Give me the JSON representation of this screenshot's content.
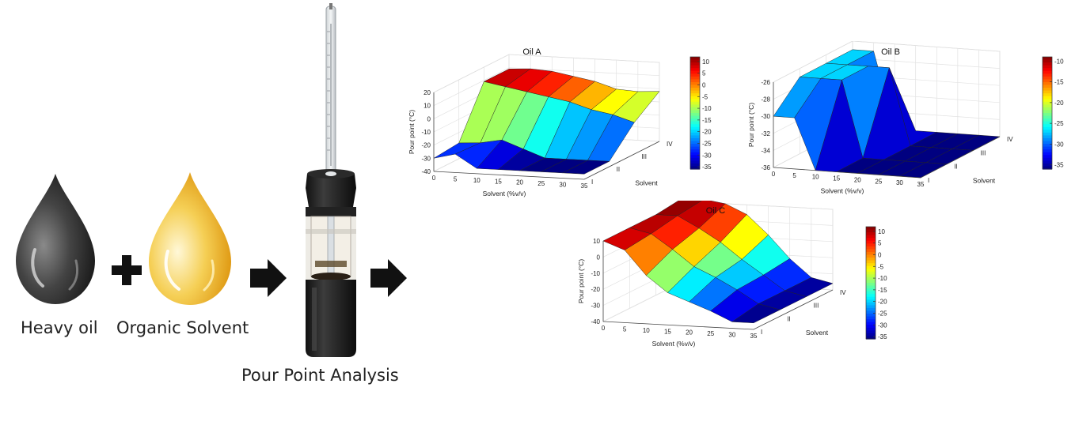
{
  "workflow": {
    "heavy_oil_label": "Heavy oil",
    "solvent_label": "Organic Solvent",
    "analysis_label": "Pour Point Analysis",
    "plus_icon": "plus-icon",
    "arrow_icon": "right-arrow-icon"
  },
  "chart_data": [
    {
      "type": "surface3d",
      "title": "Oil A",
      "xlabel": "Solvent (%v/v)",
      "ylabel": "Solvent",
      "zlabel": "Pour point (°C)",
      "x": [
        0,
        5,
        10,
        15,
        20,
        25,
        30,
        35
      ],
      "y": [
        "I",
        "II",
        "III",
        "IV"
      ],
      "zlim": [
        -40,
        20
      ],
      "zticks": [
        20,
        10,
        0,
        -10,
        -20,
        -30,
        -40
      ],
      "colorbar_ticks": [
        10,
        5,
        0,
        -5,
        -10,
        -15,
        -20,
        -25,
        -30,
        -35
      ],
      "clim": [
        -36,
        12
      ],
      "colormap": "jet",
      "series": [
        {
          "values": [
            -30,
            -26,
            -36,
            -36,
            -36,
            -36,
            -36,
            -36
          ]
        },
        {
          "values": [
            -28,
            -27,
            -24,
            -30,
            -36,
            -36,
            -36,
            -36
          ]
        },
        {
          "values": [
            9,
            6,
            3,
            0,
            -3,
            -8,
            -11,
            -16
          ]
        },
        {
          "values": [
            9,
            10,
            9,
            6,
            3,
            -2,
            -3,
            -2
          ]
        }
      ]
    },
    {
      "type": "surface3d",
      "title": "Oil B",
      "xlabel": "Solvent (%v/v)",
      "ylabel": "Solvent",
      "zlabel": "Pour point (°C)",
      "x": [
        0,
        5,
        10,
        15,
        20,
        25,
        30,
        35
      ],
      "y": [
        "I",
        "II",
        "III",
        "IV"
      ],
      "zlim": [
        -36,
        -26
      ],
      "zticks": [
        -26,
        -28,
        -30,
        -32,
        -34,
        -36
      ],
      "colorbar_ticks": [
        -10,
        -15,
        -20,
        -25,
        -30,
        -35
      ],
      "clim": [
        -36,
        -9
      ],
      "colormap": "jet",
      "series": [
        {
          "values": [
            -30,
            -30,
            -36,
            -36,
            -36,
            -36,
            -36,
            -36
          ]
        },
        {
          "values": [
            -27,
            -27,
            -27,
            -36,
            -36,
            -36,
            -36,
            -36
          ]
        },
        {
          "values": [
            -27,
            -27,
            -27,
            -27,
            -36,
            -36,
            -36,
            -36
          ]
        },
        {
          "values": [
            -27,
            -27,
            -36,
            -36,
            -36,
            -36,
            -36,
            -36
          ]
        }
      ]
    },
    {
      "type": "surface3d",
      "title": "Oil C",
      "xlabel": "Solvent (%v/v)",
      "ylabel": "Solvent",
      "zlabel": "Pour point (°C)",
      "x": [
        0,
        5,
        10,
        15,
        20,
        25,
        30,
        35
      ],
      "y": [
        "I",
        "II",
        "III",
        "IV"
      ],
      "zlim": [
        -40,
        10
      ],
      "zticks": [
        10,
        0,
        -10,
        -20,
        -30,
        -40
      ],
      "colorbar_ticks": [
        10,
        5,
        0,
        -5,
        -10,
        -15,
        -20,
        -25,
        -30,
        -35
      ],
      "clim": [
        -36,
        12
      ],
      "colormap": "jet",
      "series": [
        {
          "values": [
            10,
            5,
            -10,
            -20,
            -25,
            -30,
            -36,
            -36
          ]
        },
        {
          "values": [
            10,
            7,
            -2,
            -12,
            -18,
            -25,
            -33,
            -36
          ]
        },
        {
          "values": [
            10,
            10,
            3,
            -5,
            -15,
            -24,
            -33,
            -36
          ]
        },
        {
          "values": [
            12,
            12,
            10,
            4,
            -8,
            -22,
            -33,
            -36
          ]
        }
      ]
    }
  ]
}
